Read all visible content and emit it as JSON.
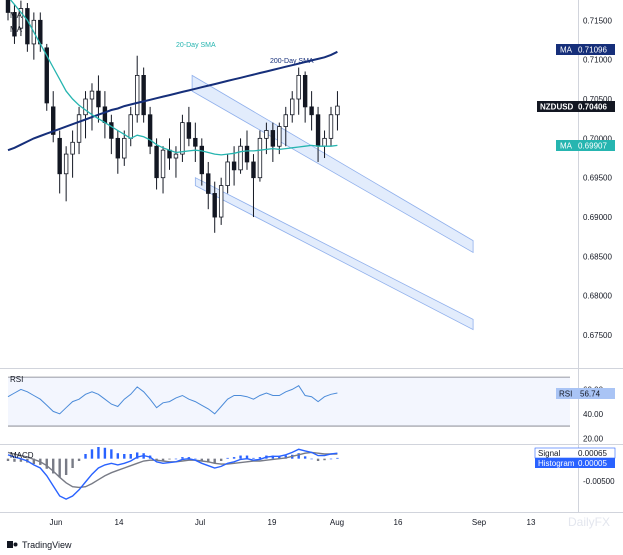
{
  "chart_data": {
    "type": "candlestick",
    "symbol": "NZDUSD",
    "last_price": "0.70406",
    "indicator_legend": [
      "MA",
      "MA"
    ],
    "annotations": {
      "sma20": "20-Day SMA",
      "sma200": "200-Day SMA"
    },
    "price_axis": {
      "ticks": [
        "0.71500",
        "0.71000",
        "0.70500",
        "0.70000",
        "0.69500",
        "0.69000",
        "0.68500",
        "0.68000",
        "0.67500"
      ],
      "ylim": [
        0.6712,
        0.7172
      ]
    },
    "x_axis": {
      "ticks": [
        "Jun",
        "14",
        "Jul",
        "19",
        "Aug",
        "16",
        "Sep",
        "13"
      ],
      "xlim": [
        0,
        87
      ]
    },
    "ohlc": [
      [
        0.718,
        0.719,
        0.715,
        0.716
      ],
      [
        0.716,
        0.717,
        0.712,
        0.713
      ],
      [
        0.714,
        0.7175,
        0.713,
        0.7165
      ],
      [
        0.7165,
        0.7172,
        0.711,
        0.712
      ],
      [
        0.712,
        0.716,
        0.71,
        0.715
      ],
      [
        0.715,
        0.716,
        0.711,
        0.712
      ],
      [
        0.7115,
        0.712,
        0.7035,
        0.7045
      ],
      [
        0.704,
        0.706,
        0.6995,
        0.7005
      ],
      [
        0.7,
        0.701,
        0.693,
        0.6955
      ],
      [
        0.6955,
        0.699,
        0.692,
        0.698
      ],
      [
        0.698,
        0.701,
        0.695,
        0.6995
      ],
      [
        0.6995,
        0.704,
        0.698,
        0.703
      ],
      [
        0.703,
        0.706,
        0.7,
        0.705
      ],
      [
        0.705,
        0.707,
        0.701,
        0.706
      ],
      [
        0.706,
        0.708,
        0.702,
        0.704
      ],
      [
        0.704,
        0.706,
        0.7,
        0.702
      ],
      [
        0.702,
        0.703,
        0.698,
        0.7
      ],
      [
        0.7,
        0.701,
        0.6955,
        0.6975
      ],
      [
        0.6975,
        0.701,
        0.6965,
        0.7
      ],
      [
        0.7,
        0.704,
        0.699,
        0.703
      ],
      [
        0.703,
        0.7105,
        0.702,
        0.708
      ],
      [
        0.708,
        0.709,
        0.702,
        0.703
      ],
      [
        0.703,
        0.704,
        0.698,
        0.699
      ],
      [
        0.699,
        0.7,
        0.6935,
        0.695
      ],
      [
        0.695,
        0.699,
        0.693,
        0.6985
      ],
      [
        0.6985,
        0.7,
        0.696,
        0.6975
      ],
      [
        0.6975,
        0.699,
        0.695,
        0.698
      ],
      [
        0.698,
        0.703,
        0.697,
        0.702
      ],
      [
        0.702,
        0.704,
        0.699,
        0.7
      ],
      [
        0.7,
        0.702,
        0.697,
        0.699
      ],
      [
        0.699,
        0.7,
        0.694,
        0.6955
      ],
      [
        0.6955,
        0.697,
        0.691,
        0.693
      ],
      [
        0.693,
        0.6945,
        0.688,
        0.69
      ],
      [
        0.69,
        0.695,
        0.689,
        0.694
      ],
      [
        0.694,
        0.698,
        0.693,
        0.697
      ],
      [
        0.697,
        0.699,
        0.694,
        0.696
      ],
      [
        0.696,
        0.7,
        0.6955,
        0.699
      ],
      [
        0.699,
        0.701,
        0.696,
        0.697
      ],
      [
        0.697,
        0.698,
        0.69,
        0.695
      ],
      [
        0.695,
        0.701,
        0.6945,
        0.7
      ],
      [
        0.7,
        0.702,
        0.698,
        0.701
      ],
      [
        0.701,
        0.702,
        0.697,
        0.699
      ],
      [
        0.699,
        0.702,
        0.698,
        0.7015
      ],
      [
        0.7015,
        0.704,
        0.699,
        0.703
      ],
      [
        0.703,
        0.706,
        0.702,
        0.705
      ],
      [
        0.705,
        0.709,
        0.703,
        0.708
      ],
      [
        0.708,
        0.7085,
        0.702,
        0.704
      ],
      [
        0.704,
        0.706,
        0.701,
        0.703
      ],
      [
        0.703,
        0.704,
        0.697,
        0.699
      ],
      [
        0.699,
        0.701,
        0.6975,
        0.7
      ],
      [
        0.7,
        0.704,
        0.699,
        0.703
      ],
      [
        0.703,
        0.706,
        0.701,
        0.7041
      ]
    ],
    "sma20": {
      "label": "MA",
      "value": "0.69907",
      "color": "#26b5b0",
      "values": [
        0.718,
        0.717,
        0.716,
        0.715,
        0.7135,
        0.712,
        0.7105,
        0.709,
        0.7075,
        0.706,
        0.705,
        0.7042,
        0.7036,
        0.703,
        0.7025,
        0.702,
        0.7015,
        0.701,
        0.7005,
        0.7,
        0.7004,
        0.7002,
        0.6998,
        0.6992,
        0.6988,
        0.6985,
        0.6982,
        0.6983,
        0.6984,
        0.6985,
        0.6984,
        0.6982,
        0.698,
        0.6979,
        0.698,
        0.6981,
        0.6983,
        0.6984,
        0.6984,
        0.6985,
        0.6986,
        0.6987,
        0.6986,
        0.6987,
        0.6988,
        0.6989,
        0.699,
        0.6991,
        0.699,
        0.699,
        0.699,
        0.6991
      ]
    },
    "sma200": {
      "label": "MA",
      "value": "0.71096",
      "color": "#162f7a",
      "values": [
        0.6985,
        0.6988,
        0.6992,
        0.6996,
        0.7,
        0.7003,
        0.7006,
        0.7009,
        0.7012,
        0.7015,
        0.7018,
        0.7021,
        0.7024,
        0.7027,
        0.703,
        0.7033,
        0.7036,
        0.7038,
        0.7041,
        0.7043,
        0.7045,
        0.7047,
        0.7049,
        0.7051,
        0.7053,
        0.7055,
        0.7057,
        0.7059,
        0.7061,
        0.7063,
        0.7065,
        0.7067,
        0.7069,
        0.7071,
        0.7073,
        0.7075,
        0.7077,
        0.7079,
        0.7081,
        0.7083,
        0.7085,
        0.7087,
        0.7089,
        0.7091,
        0.7093,
        0.7095,
        0.7097,
        0.7099,
        0.7101,
        0.7103,
        0.7106,
        0.711
      ]
    },
    "channel": [
      {
        "from": [
          28.5,
          0.708
        ],
        "to": [
          72,
          0.687
        ]
      },
      {
        "from": [
          28.5,
          0.706
        ],
        "to": [
          72,
          0.6855
        ]
      },
      {
        "from": [
          29,
          0.695
        ],
        "to": [
          72,
          0.677
        ]
      },
      {
        "from": [
          29,
          0.694
        ],
        "to": [
          72,
          0.6757
        ]
      }
    ],
    "rsi": {
      "label": "RSI",
      "value": "56.74",
      "ticks": [
        "60.00",
        "40.00",
        "20.00"
      ],
      "ylim": [
        17,
        75
      ],
      "upper": 70,
      "lower": 30,
      "color": "#4b8bd9",
      "values": [
        54,
        57,
        60,
        58,
        55,
        52,
        47,
        42,
        40,
        45,
        50,
        52,
        56,
        58,
        56,
        52,
        48,
        46,
        52,
        56,
        62,
        58,
        52,
        45,
        49,
        50,
        53,
        55,
        52,
        50,
        47,
        44,
        40,
        46,
        52,
        55,
        55,
        54,
        52,
        55,
        57,
        55,
        55,
        58,
        60,
        63,
        55,
        54,
        50,
        54,
        56,
        57
      ]
    },
    "macd": {
      "label": "MACD",
      "signal_label": "Signal",
      "signal_value": "0.00065",
      "histogram_label": "Histogram",
      "histogram_value": "0.00005",
      "ticks": [
        "-0.00500"
      ],
      "ylim": [
        -0.0066,
        0.0015
      ],
      "macd_line_color": "#2962ff",
      "signal_line_color": "#787b86",
      "macd": [
        0.0005,
        0.0002,
        0.0,
        -0.0003,
        -0.0008,
        -0.0012,
        -0.0022,
        -0.0035,
        -0.0048,
        -0.0052,
        -0.0048,
        -0.004,
        -0.003,
        -0.002,
        -0.0012,
        -0.0008,
        -0.0006,
        -0.0008,
        -0.0006,
        -0.0003,
        0.0002,
        0.0004,
        0.0002,
        -0.0004,
        -0.0006,
        -0.0005,
        -0.0004,
        -0.0001,
        0.0,
        -0.0002,
        -0.0006,
        -0.0009,
        -0.0012,
        -0.001,
        -0.0006,
        -0.0004,
        -0.0001,
        0.0,
        -0.0002,
        -0.0001,
        0.0002,
        0.0003,
        0.0003,
        0.0005,
        0.0008,
        0.0012,
        0.001,
        0.0008,
        0.0004,
        0.0004,
        0.0006,
        0.0007
      ],
      "signal": [
        0.0008,
        0.0006,
        0.0004,
        0.0002,
        -0.0001,
        -0.0004,
        -0.0009,
        -0.0016,
        -0.0024,
        -0.0031,
        -0.0036,
        -0.0037,
        -0.0036,
        -0.0032,
        -0.0027,
        -0.0022,
        -0.0018,
        -0.0015,
        -0.0012,
        -0.0009,
        -0.0006,
        -0.0003,
        -0.0002,
        -0.0002,
        -0.0003,
        -0.0004,
        -0.0004,
        -0.0003,
        -0.0002,
        -0.0002,
        -0.0003,
        -0.0004,
        -0.0006,
        -0.0007,
        -0.0007,
        -0.0006,
        -0.0005,
        -0.0004,
        -0.0003,
        -0.0003,
        -0.0002,
        -0.0001,
        0.0,
        0.0001,
        0.0003,
        0.0005,
        0.0007,
        0.0008,
        0.0007,
        0.0006,
        0.0006,
        0.0006
      ]
    },
    "colors": {
      "candle": "#131722",
      "channel_fill": "#d6e4fb",
      "channel_stroke": "#90b0ec",
      "axis_text": "#131722",
      "rsi_band": "#f3f6fe",
      "hist_pos": "#2962ff",
      "hist_neg": "#787b86"
    }
  },
  "branding": "TradingView",
  "watermark": "DailyFX"
}
